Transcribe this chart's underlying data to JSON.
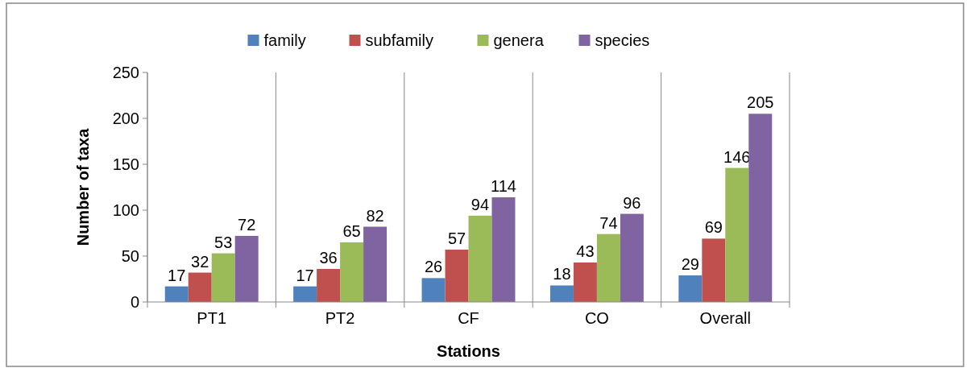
{
  "chart_data": {
    "type": "bar",
    "xlabel": "Stations",
    "ylabel": "Number of taxa",
    "categories": [
      "PT1",
      "PT2",
      "CF",
      "CO",
      "Overall"
    ],
    "series": [
      {
        "name": "family",
        "color": "#4f81bd",
        "values": [
          17,
          17,
          26,
          18,
          29
        ]
      },
      {
        "name": "subfamily",
        "color": "#c0504d",
        "values": [
          32,
          36,
          57,
          43,
          69
        ]
      },
      {
        "name": "genera",
        "color": "#9bbb59",
        "values": [
          53,
          65,
          94,
          74,
          146
        ]
      },
      {
        "name": "species",
        "color": "#8064a2",
        "values": [
          72,
          82,
          114,
          96,
          205
        ]
      }
    ],
    "ylim": [
      0,
      250
    ],
    "yticks": [
      0,
      50,
      100,
      150,
      200,
      250
    ],
    "grid": false,
    "legend": "top",
    "data_labels": true
  }
}
